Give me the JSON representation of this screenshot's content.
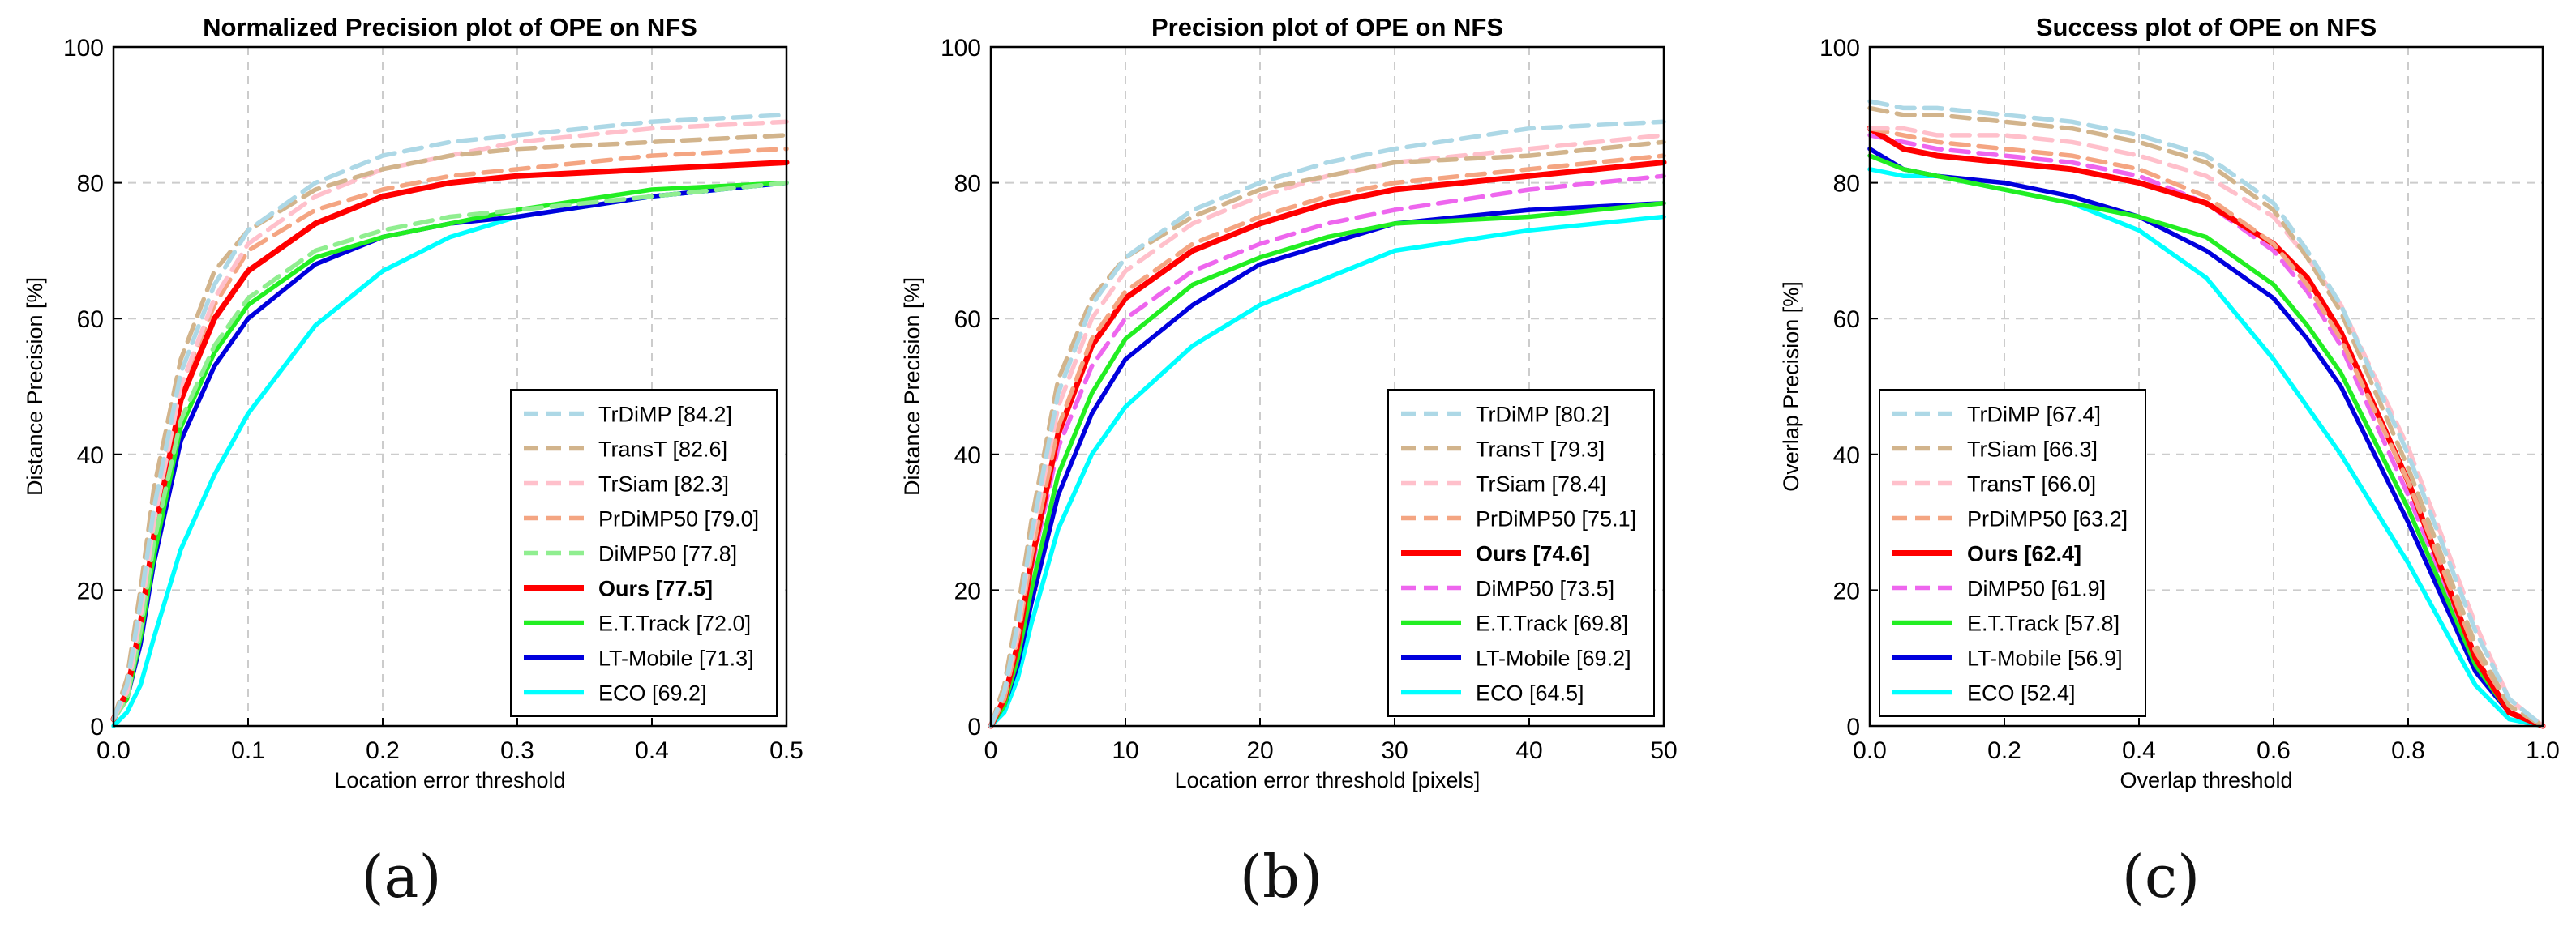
{
  "panel_labels": [
    "(a)",
    "(b)",
    "(c)"
  ],
  "chart_data": [
    {
      "type": "line",
      "title": "Normalized Precision plot of OPE on NFS",
      "xlabel": "Location error threshold",
      "ylabel": "Distance Precision [%]",
      "xlim": [
        0,
        0.5
      ],
      "ylim": [
        0,
        100
      ],
      "xticks": [
        0,
        0.1,
        0.2,
        0.3,
        0.4,
        0.5
      ],
      "xtick_labels": [
        "0.0",
        "0.1",
        "0.2",
        "0.3",
        "0.4",
        "0.5"
      ],
      "yticks": [
        0,
        20,
        40,
        60,
        80,
        100
      ],
      "ytick_labels": [
        "0",
        "20",
        "40",
        "60",
        "80",
        "100"
      ],
      "grid": true,
      "legend_position": "lower-right",
      "x": [
        0,
        0.01,
        0.02,
        0.03,
        0.05,
        0.075,
        0.1,
        0.15,
        0.2,
        0.25,
        0.3,
        0.4,
        0.5
      ],
      "series": [
        {
          "name": "TrDiMP",
          "score": "[84.2]",
          "color": "#add8e6",
          "dash": true,
          "bold": false,
          "values": [
            1,
            6,
            18,
            32,
            52,
            65,
            73,
            80,
            84,
            86,
            87,
            89,
            90
          ]
        },
        {
          "name": "TransT",
          "score": "[82.6]",
          "color": "#d2b48c",
          "dash": true,
          "bold": false,
          "values": [
            1,
            7,
            20,
            35,
            54,
            67,
            73,
            79,
            82,
            84,
            85,
            86,
            87
          ]
        },
        {
          "name": "TrSiam",
          "score": "[82.3]",
          "color": "#ffc0cb",
          "dash": true,
          "bold": false,
          "values": [
            1,
            5,
            16,
            30,
            50,
            63,
            71,
            78,
            82,
            84,
            86,
            88,
            89
          ]
        },
        {
          "name": "PrDiMP50",
          "score": "[79.0]",
          "color": "#f4a582",
          "dash": true,
          "bold": false,
          "values": [
            1,
            5,
            17,
            31,
            50,
            62,
            70,
            76,
            79,
            81,
            82,
            84,
            85
          ]
        },
        {
          "name": "DiMP50",
          "score": "[77.8]",
          "color": "#90ee90",
          "dash": true,
          "bold": false,
          "values": [
            1,
            4,
            14,
            27,
            45,
            56,
            63,
            70,
            73,
            75,
            76,
            78,
            80
          ]
        },
        {
          "name": "Ours",
          "score": "[77.5]",
          "color": "#ff0000",
          "dash": false,
          "bold": true,
          "values": [
            1,
            5,
            15,
            28,
            48,
            60,
            67,
            74,
            78,
            80,
            81,
            82,
            83
          ]
        },
        {
          "name": "E.T.Track",
          "score": "[72.0]",
          "color": "#22ee22",
          "dash": false,
          "bold": false,
          "values": [
            1,
            4,
            13,
            25,
            44,
            55,
            62,
            69,
            72,
            74,
            76,
            79,
            80
          ]
        },
        {
          "name": "LT-Mobile",
          "score": "[71.3]",
          "color": "#0000dd",
          "dash": false,
          "bold": false,
          "values": [
            1,
            4,
            12,
            24,
            42,
            53,
            60,
            68,
            72,
            74,
            75,
            78,
            80
          ]
        },
        {
          "name": "ECO",
          "score": "[69.2]",
          "color": "#00ffff",
          "dash": false,
          "bold": false,
          "values": [
            0,
            2,
            6,
            13,
            26,
            37,
            46,
            59,
            67,
            72,
            75,
            78,
            80
          ]
        }
      ]
    },
    {
      "type": "line",
      "title": "Precision plot of OPE on NFS",
      "xlabel": "Location error threshold [pixels]",
      "ylabel": "Distance Precision [%]",
      "xlim": [
        0,
        50
      ],
      "ylim": [
        0,
        100
      ],
      "xticks": [
        0,
        10,
        20,
        30,
        40,
        50
      ],
      "xtick_labels": [
        "0",
        "10",
        "20",
        "30",
        "40",
        "50"
      ],
      "yticks": [
        0,
        20,
        40,
        60,
        80,
        100
      ],
      "ytick_labels": [
        "0",
        "20",
        "40",
        "60",
        "80",
        "100"
      ],
      "grid": true,
      "legend_position": "lower-right",
      "x": [
        0,
        1,
        2,
        3,
        5,
        7.5,
        10,
        15,
        20,
        25,
        30,
        40,
        50
      ],
      "series": [
        {
          "name": "TrDiMP",
          "score": "[80.2]",
          "color": "#add8e6",
          "dash": true,
          "bold": false,
          "values": [
            0,
            5,
            15,
            28,
            49,
            62,
            69,
            76,
            80,
            83,
            85,
            88,
            89
          ]
        },
        {
          "name": "TransT",
          "score": "[79.3]",
          "color": "#d2b48c",
          "dash": true,
          "bold": false,
          "values": [
            0,
            6,
            17,
            30,
            51,
            63,
            69,
            75,
            79,
            81,
            83,
            84,
            86
          ]
        },
        {
          "name": "TrSiam",
          "score": "[78.4]",
          "color": "#ffc0cb",
          "dash": true,
          "bold": false,
          "values": [
            0,
            5,
            14,
            27,
            47,
            60,
            67,
            74,
            78,
            81,
            83,
            85,
            87
          ]
        },
        {
          "name": "PrDiMP50",
          "score": "[75.1]",
          "color": "#f4a582",
          "dash": true,
          "bold": false,
          "values": [
            0,
            4,
            13,
            25,
            44,
            57,
            64,
            71,
            75,
            78,
            80,
            82,
            84
          ]
        },
        {
          "name": "Ours",
          "score": "[74.6]",
          "color": "#ff0000",
          "dash": false,
          "bold": true,
          "values": [
            0,
            4,
            12,
            24,
            43,
            56,
            63,
            70,
            74,
            77,
            79,
            81,
            83
          ]
        },
        {
          "name": "DiMP50",
          "score": "[73.5]",
          "color": "#ee66ee",
          "dash": true,
          "bold": false,
          "values": [
            0,
            4,
            12,
            23,
            41,
            53,
            60,
            67,
            71,
            74,
            76,
            79,
            81
          ]
        },
        {
          "name": "E.T.Track",
          "score": "[69.8]",
          "color": "#22ee22",
          "dash": false,
          "bold": false,
          "values": [
            0,
            3,
            10,
            20,
            37,
            49,
            57,
            65,
            69,
            72,
            74,
            75,
            77
          ]
        },
        {
          "name": "LT-Mobile",
          "score": "[69.2]",
          "color": "#0000dd",
          "dash": false,
          "bold": false,
          "values": [
            0,
            3,
            9,
            18,
            34,
            46,
            54,
            62,
            68,
            71,
            74,
            76,
            77
          ]
        },
        {
          "name": "ECO",
          "score": "[64.5]",
          "color": "#00ffff",
          "dash": false,
          "bold": false,
          "values": [
            0,
            2,
            7,
            15,
            29,
            40,
            47,
            56,
            62,
            66,
            70,
            73,
            75
          ]
        }
      ]
    },
    {
      "type": "line",
      "title": "Success plot of OPE on NFS",
      "xlabel": "Overlap threshold",
      "ylabel": "Overlap Precision [%]",
      "xlim": [
        0,
        1
      ],
      "ylim": [
        0,
        100
      ],
      "xticks": [
        0,
        0.2,
        0.4,
        0.6,
        0.8,
        1.0
      ],
      "xtick_labels": [
        "0.0",
        "0.2",
        "0.4",
        "0.6",
        "0.8",
        "1.0"
      ],
      "yticks": [
        0,
        20,
        40,
        60,
        80,
        100
      ],
      "ytick_labels": [
        "0",
        "20",
        "40",
        "60",
        "80",
        "100"
      ],
      "grid": true,
      "legend_position": "lower-left",
      "x": [
        0,
        0.05,
        0.1,
        0.2,
        0.3,
        0.4,
        0.5,
        0.6,
        0.65,
        0.7,
        0.8,
        0.9,
        0.95,
        1.0
      ],
      "series": [
        {
          "name": "TrDiMP",
          "score": "[67.4]",
          "color": "#add8e6",
          "dash": true,
          "bold": false,
          "values": [
            92,
            91,
            91,
            90,
            89,
            87,
            84,
            77,
            70,
            62,
            40,
            14,
            4,
            0
          ]
        },
        {
          "name": "TrSiam",
          "score": "[66.3]",
          "color": "#d2b48c",
          "dash": true,
          "bold": false,
          "values": [
            91,
            90,
            90,
            89,
            88,
            86,
            83,
            76,
            69,
            61,
            38,
            12,
            3,
            0
          ]
        },
        {
          "name": "TransT",
          "score": "[66.0]",
          "color": "#ffc0cb",
          "dash": true,
          "bold": false,
          "values": [
            88,
            88,
            87,
            87,
            86,
            84,
            81,
            75,
            69,
            62,
            41,
            15,
            4,
            0
          ]
        },
        {
          "name": "PrDiMP50",
          "score": "[63.2]",
          "color": "#f4a582",
          "dash": true,
          "bold": false,
          "values": [
            88,
            87,
            86,
            85,
            84,
            82,
            78,
            71,
            65,
            57,
            36,
            11,
            3,
            0
          ]
        },
        {
          "name": "Ours",
          "score": "[62.4]",
          "color": "#ff0000",
          "dash": false,
          "bold": true,
          "values": [
            88,
            85,
            84,
            83,
            82,
            80,
            77,
            71,
            66,
            58,
            36,
            10,
            2,
            0
          ]
        },
        {
          "name": "DiMP50",
          "score": "[61.9]",
          "color": "#ee66ee",
          "dash": true,
          "bold": false,
          "values": [
            87,
            86,
            85,
            84,
            83,
            81,
            77,
            70,
            64,
            56,
            34,
            10,
            2,
            0
          ]
        },
        {
          "name": "E.T.Track",
          "score": "[57.8]",
          "color": "#22ee22",
          "dash": false,
          "bold": false,
          "values": [
            84,
            82,
            81,
            79,
            77,
            75,
            72,
            65,
            59,
            52,
            32,
            9,
            2,
            0
          ]
        },
        {
          "name": "LT-Mobile",
          "score": "[56.9]",
          "color": "#0000dd",
          "dash": false,
          "bold": false,
          "values": [
            85,
            82,
            81,
            80,
            78,
            75,
            70,
            63,
            57,
            50,
            30,
            8,
            2,
            0
          ]
        },
        {
          "name": "ECO",
          "score": "[52.4]",
          "color": "#00ffff",
          "dash": false,
          "bold": false,
          "values": [
            82,
            81,
            81,
            79,
            77,
            73,
            66,
            54,
            47,
            40,
            24,
            6,
            1,
            0
          ]
        }
      ]
    }
  ]
}
